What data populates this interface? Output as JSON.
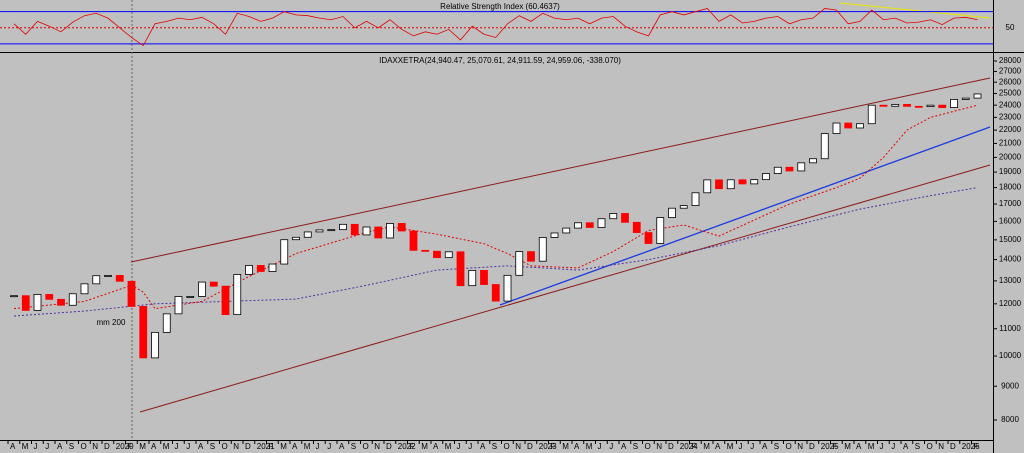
{
  "chart_data": [
    {
      "type": "line",
      "title": "Relative Strength Index (60.4637)",
      "series": [
        {
          "color": "#e00000",
          "values": [
            55,
            42,
            58,
            52,
            45,
            57,
            65,
            68,
            62,
            50,
            38,
            28,
            55,
            58,
            62,
            60,
            63,
            55,
            42,
            68,
            64,
            58,
            62,
            70,
            66,
            65,
            62,
            60,
            64,
            50,
            58,
            50,
            60,
            48,
            40,
            45,
            42,
            48,
            35,
            52,
            42,
            38,
            55,
            65,
            58,
            68,
            62,
            60,
            62,
            55,
            62,
            64,
            52,
            45,
            40,
            66,
            70,
            66,
            70,
            74,
            58,
            66,
            56,
            58,
            62,
            64,
            55,
            60,
            62,
            74,
            72,
            55,
            58,
            72,
            60,
            62,
            56,
            57,
            60,
            54,
            62,
            63,
            60
          ]
        }
      ],
      "ylim": [
        20,
        82
      ],
      "yticks": [
        50
      ],
      "levels": [
        30,
        70
      ],
      "level_color": "#0000ff"
    },
    {
      "type": "candlestick",
      "title": "IDAXXETRA(24,940.47, 25,070.61, 24,911.59, 24,959.06, -338.070)",
      "categories": [
        "A",
        "M",
        "J",
        "J",
        "A",
        "S",
        "O",
        "N",
        "D",
        "2020",
        "F",
        "M",
        "A",
        "M",
        "J",
        "J",
        "A",
        "S",
        "O",
        "N",
        "D",
        "2021",
        "F",
        "M",
        "A",
        "M",
        "J",
        "J",
        "A",
        "S",
        "O",
        "N",
        "D",
        "2022",
        "F",
        "M",
        "A",
        "M",
        "J",
        "J",
        "A",
        "S",
        "O",
        "N",
        "D",
        "2023",
        "F",
        "M",
        "A",
        "M",
        "J",
        "J",
        "A",
        "S",
        "O",
        "N",
        "D",
        "2024",
        "F",
        "M",
        "A",
        "M",
        "J",
        "J",
        "A",
        "S",
        "O",
        "N",
        "D",
        "2025",
        "F",
        "M",
        "A",
        "M",
        "J",
        "J",
        "A",
        "S",
        "O",
        "N",
        "D",
        "2026",
        "F"
      ],
      "values": [
        12344,
        11727,
        12399,
        12189,
        11939,
        12428,
        12866,
        13236,
        13249,
        12981,
        11890,
        9936,
        10862,
        11587,
        12311,
        12313,
        12945,
        12761,
        11556,
        13291,
        13719,
        13433,
        13786,
        15008,
        15136,
        15421,
        15531,
        15544,
        15835,
        15261,
        15689,
        15100,
        15885,
        15471,
        14461,
        14415,
        14098,
        14388,
        12784,
        13484,
        12835,
        12114,
        13254,
        14397,
        13924,
        15128,
        15365,
        15629,
        15922,
        15664,
        16148,
        16447,
        15947,
        15387,
        14810,
        16215,
        16752,
        16904,
        17678,
        18492,
        17932,
        18498,
        18235,
        18509,
        18907,
        19325,
        19078,
        19626,
        19909,
        21732,
        22551,
        22163,
        22497,
        23997,
        23909,
        24065,
        23902,
        23881,
        24000,
        23800,
        24490,
        24600,
        24959
      ],
      "up_color": "#000000",
      "down_color": "#ff0000",
      "ylim": [
        8000,
        28000
      ],
      "log_scale": true,
      "yticks": [
        8000,
        9000,
        10000,
        11000,
        12000,
        13000,
        14000,
        15000,
        16000,
        17000,
        18000,
        19000,
        20000,
        21000,
        22000,
        23000,
        24000,
        25000,
        26000,
        27000,
        28000
      ],
      "series": [
        {
          "name": "mm 200",
          "color": "#5030a0",
          "x": [
            0,
            6,
            12,
            18,
            24,
            30,
            36,
            42,
            48,
            54,
            60,
            66,
            72,
            78,
            82
          ],
          "values": [
            11500,
            11700,
            12000,
            12100,
            12200,
            12800,
            13500,
            13700,
            13500,
            14000,
            14700,
            15700,
            16700,
            17500,
            18000
          ]
        },
        {
          "color": "#e00000",
          "x": [
            0,
            6,
            10,
            11,
            12,
            16,
            20,
            24,
            30,
            32,
            36,
            40,
            42,
            44,
            48,
            51,
            54,
            57,
            60,
            66,
            70,
            72,
            74,
            76,
            78,
            82
          ],
          "values": [
            11800,
            12100,
            12800,
            12500,
            11800,
            12100,
            13200,
            14300,
            15400,
            15700,
            15300,
            14800,
            14300,
            13700,
            13600,
            14400,
            15500,
            15800,
            15200,
            17000,
            18000,
            18600,
            20000,
            22000,
            23000,
            24000
          ]
        }
      ]
    }
  ]
}
